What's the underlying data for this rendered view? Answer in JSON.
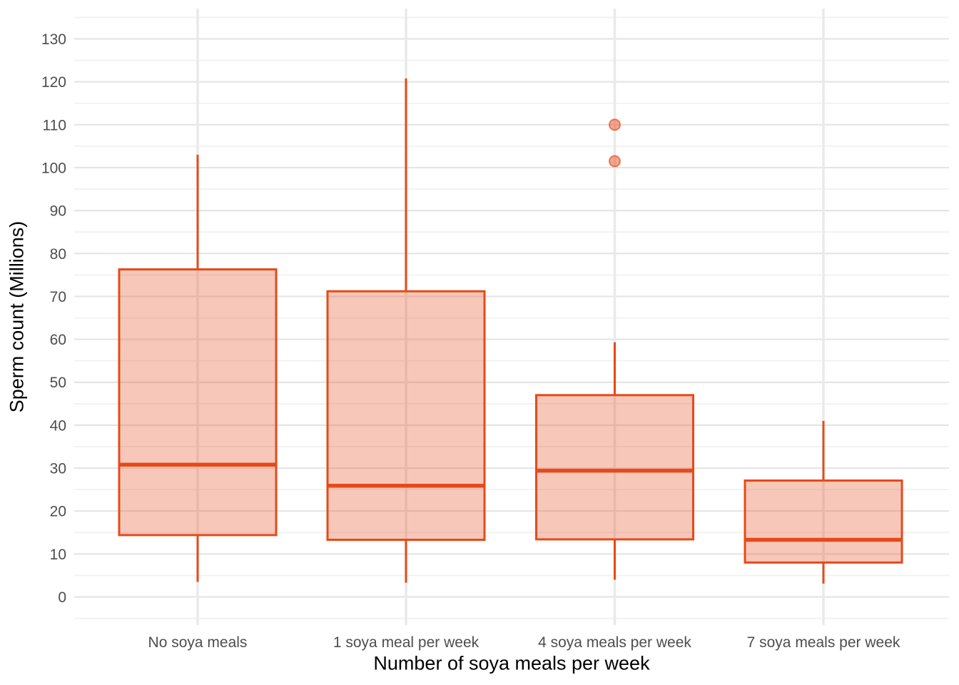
{
  "chart_data": {
    "type": "boxplot",
    "title": "",
    "xlabel": "Number of soya meals per week",
    "ylabel": "Sperm count (Millions)",
    "categories": [
      "No soya meals",
      "1 soya meal per week",
      "4 soya meals per week",
      "7 soya meals per week"
    ],
    "groups": [
      {
        "label": "No soya meals",
        "whisker_low": 3.5,
        "q1": 14.4,
        "median": 30.8,
        "q3": 76.3,
        "whisker_high": 103.0,
        "outliers": []
      },
      {
        "label": "1 soya meal per week",
        "whisker_low": 3.3,
        "q1": 13.3,
        "median": 25.9,
        "q3": 71.2,
        "whisker_high": 120.8,
        "outliers": []
      },
      {
        "label": "4 soya meals per week",
        "whisker_low": 4.0,
        "q1": 13.4,
        "median": 29.4,
        "q3": 47.0,
        "whisker_high": 59.3,
        "outliers": [
          110.0,
          101.5
        ]
      },
      {
        "label": "7 soya meals per week",
        "whisker_low": 3.1,
        "q1": 8.0,
        "median": 13.3,
        "q3": 27.1,
        "whisker_high": 41.0,
        "outliers": []
      }
    ],
    "y_axis": {
      "ticks": [
        0,
        10,
        20,
        30,
        40,
        50,
        60,
        70,
        80,
        90,
        100,
        110,
        120,
        130
      ],
      "minor_gridlines": [
        -5,
        5,
        15,
        25,
        35,
        45,
        55,
        65,
        75,
        85,
        95,
        105,
        115,
        125,
        135
      ],
      "ylim_shown": [
        -6.5,
        137
      ]
    },
    "legend": "none",
    "grid": {
      "horizontal_major": true,
      "horizontal_minor": true,
      "vertical_major": true
    },
    "colors": {
      "box_stroke": "#E64A19",
      "box_fill": "rgba(230,74,25,0.30)",
      "outlier_fill": "rgba(230,74,25,0.48)",
      "outlier_stroke": "rgba(226,64,16,0.62)",
      "grid_major": "#E5E5E5",
      "grid_minor": "#F1F1F1",
      "grid_vertical": "#EAEAEA",
      "tick_label": "#4D4D4D",
      "axis_title": "#000000",
      "background": "#FFFFFF"
    }
  }
}
